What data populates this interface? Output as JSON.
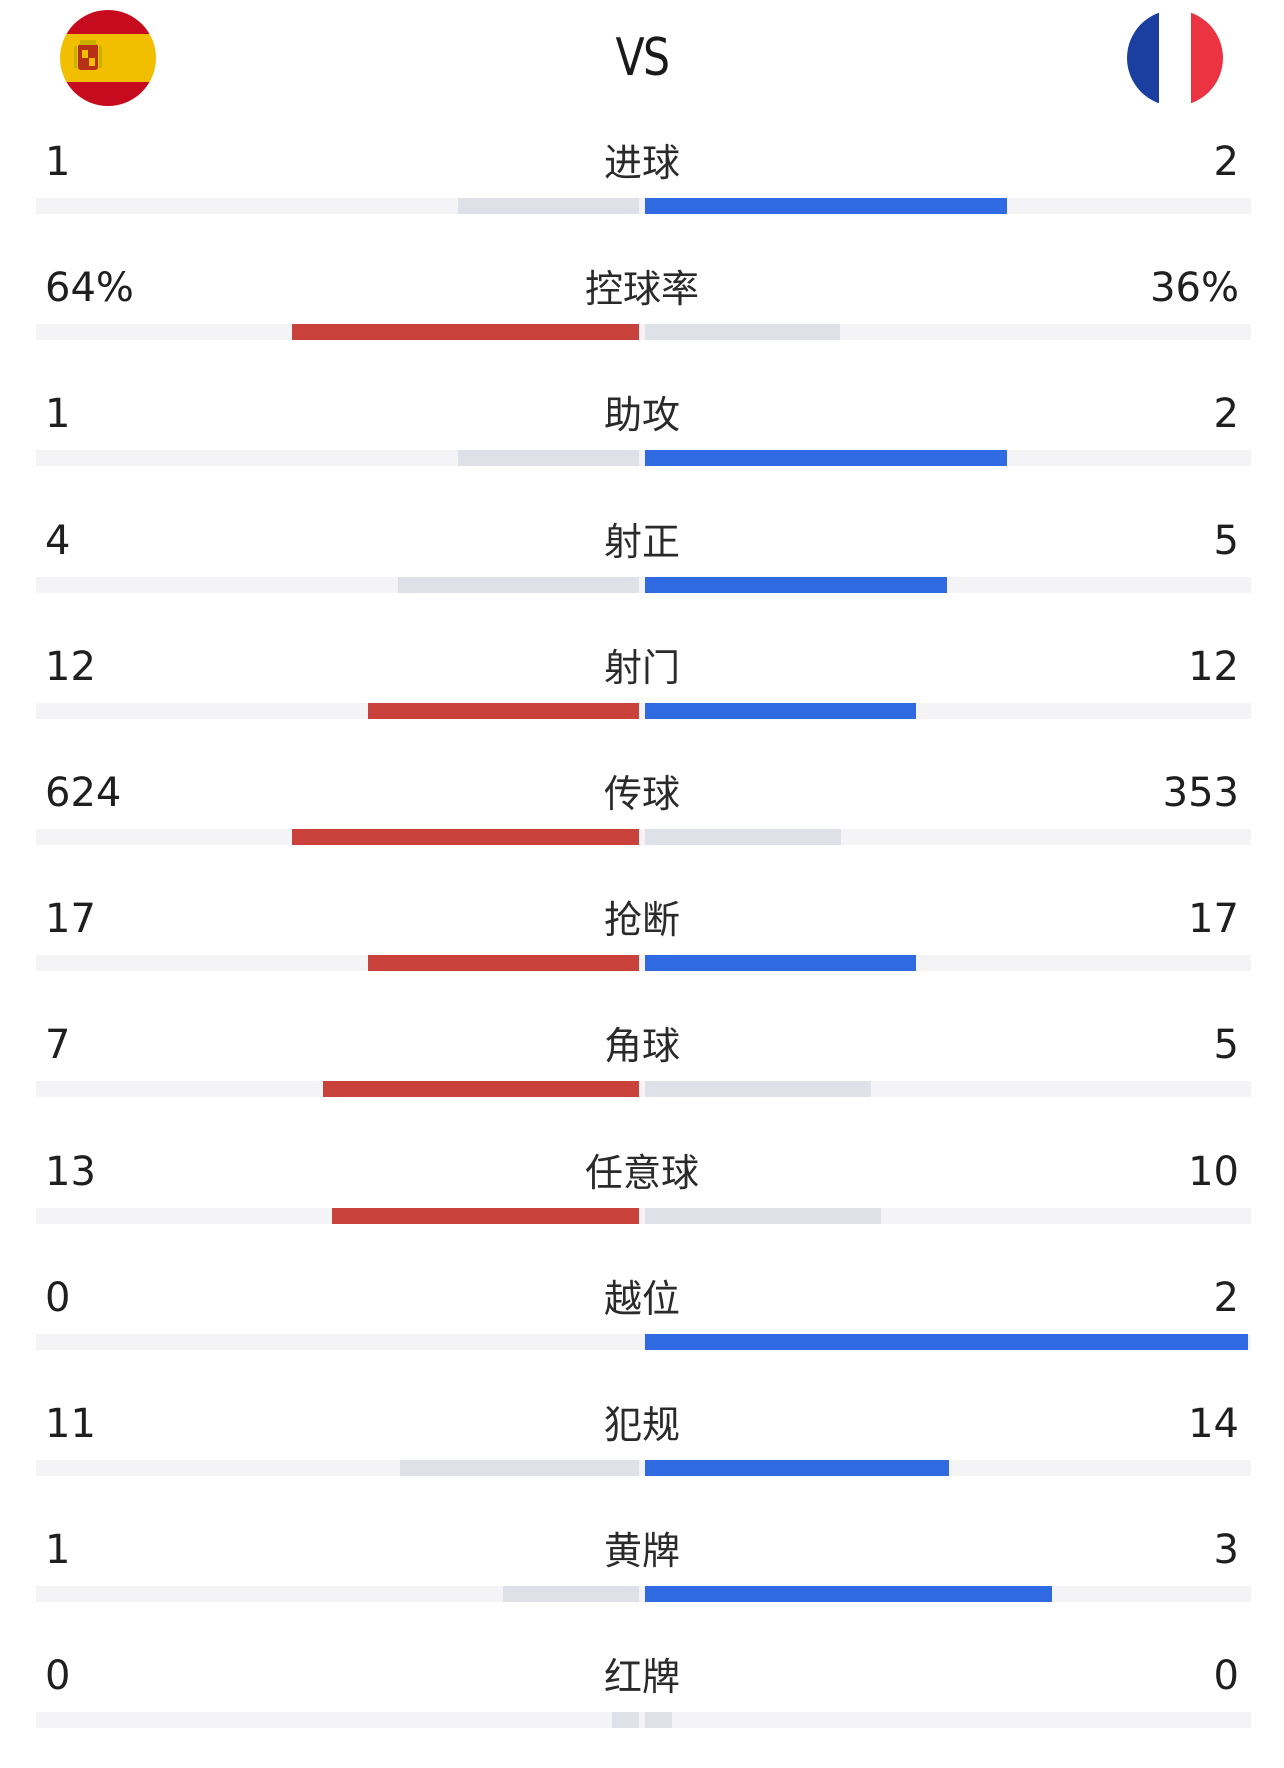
{
  "header": {
    "vs_label": "VS",
    "home_flag_icon": "spain-flag-icon",
    "away_flag_icon": "france-flag-icon"
  },
  "colors": {
    "home_bar": "#c8413a",
    "away_bar": "#2f6ae3",
    "muted_bar": "#dfe1e8",
    "track": "#f4f4f6"
  },
  "stats": [
    {
      "label": "进球",
      "home": "1",
      "away": "2",
      "home_pct": 0.333,
      "away_pct": 0.667,
      "leader": "away"
    },
    {
      "label": "控球率",
      "home": "64%",
      "away": "36%",
      "home_pct": 0.64,
      "away_pct": 0.36,
      "leader": "home"
    },
    {
      "label": "助攻",
      "home": "1",
      "away": "2",
      "home_pct": 0.333,
      "away_pct": 0.667,
      "leader": "away"
    },
    {
      "label": "射正",
      "home": "4",
      "away": "5",
      "home_pct": 0.444,
      "away_pct": 0.556,
      "leader": "away"
    },
    {
      "label": "射门",
      "home": "12",
      "away": "12",
      "home_pct": 0.5,
      "away_pct": 0.5,
      "leader": "both"
    },
    {
      "label": "传球",
      "home": "624",
      "away": "353",
      "home_pct": 0.639,
      "away_pct": 0.361,
      "leader": "home"
    },
    {
      "label": "抢断",
      "home": "17",
      "away": "17",
      "home_pct": 0.5,
      "away_pct": 0.5,
      "leader": "both"
    },
    {
      "label": "角球",
      "home": "7",
      "away": "5",
      "home_pct": 0.583,
      "away_pct": 0.417,
      "leader": "home"
    },
    {
      "label": "任意球",
      "home": "13",
      "away": "10",
      "home_pct": 0.565,
      "away_pct": 0.435,
      "leader": "home"
    },
    {
      "label": "越位",
      "home": "0",
      "away": "2",
      "home_pct": 0.0,
      "away_pct": 1.0,
      "leader": "away"
    },
    {
      "label": "犯规",
      "home": "11",
      "away": "14",
      "home_pct": 0.44,
      "away_pct": 0.56,
      "leader": "away"
    },
    {
      "label": "黄牌",
      "home": "1",
      "away": "3",
      "home_pct": 0.25,
      "away_pct": 0.75,
      "leader": "away"
    },
    {
      "label": "红牌",
      "home": "0",
      "away": "0",
      "home_pct": 0.05,
      "away_pct": 0.05,
      "leader": "none"
    }
  ]
}
